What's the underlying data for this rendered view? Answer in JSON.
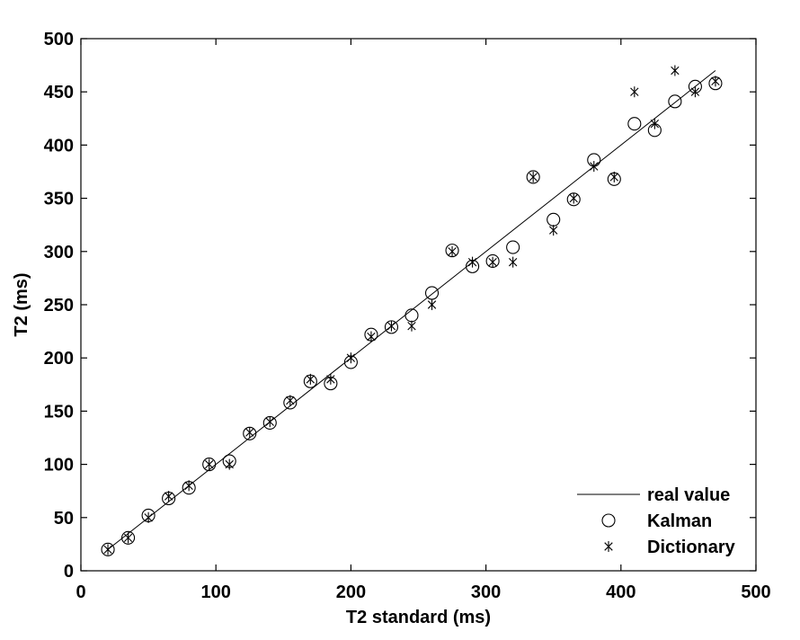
{
  "chart_data": {
    "type": "scatter",
    "title": "",
    "xlabel": "T2 standard (ms)",
    "ylabel": "T2 (ms)",
    "xlim": [
      0,
      500
    ],
    "ylim": [
      0,
      500
    ],
    "xticks": [
      "0",
      "100",
      "200",
      "300",
      "400",
      "500"
    ],
    "yticks": [
      "0",
      "50",
      "100",
      "150",
      "200",
      "250",
      "300",
      "350",
      "400",
      "450",
      "500"
    ],
    "grid": false,
    "legend_position": "bottom-right",
    "series": [
      {
        "name": "real value",
        "marker": "line",
        "x": [
          20,
          470
        ],
        "y": [
          20,
          470
        ]
      },
      {
        "name": "Kalman",
        "marker": "circle",
        "x": [
          20,
          35,
          50,
          65,
          80,
          95,
          110,
          125,
          140,
          155,
          170,
          185,
          200,
          215,
          230,
          245,
          260,
          275,
          290,
          305,
          320,
          335,
          350,
          365,
          380,
          395,
          410,
          425,
          440,
          455,
          470
        ],
        "y": [
          20,
          31,
          52,
          68,
          78,
          100,
          103,
          129,
          139,
          158,
          178,
          176,
          196,
          222,
          229,
          240,
          261,
          301,
          286,
          291,
          304,
          370,
          330,
          349,
          386,
          368,
          420,
          414,
          441,
          455,
          458
        ]
      },
      {
        "name": "Dictionary",
        "marker": "star",
        "x": [
          20,
          35,
          50,
          65,
          80,
          95,
          110,
          125,
          140,
          155,
          170,
          185,
          200,
          215,
          230,
          245,
          260,
          275,
          290,
          305,
          320,
          335,
          350,
          365,
          380,
          395,
          410,
          425,
          440,
          455,
          470
        ],
        "y": [
          20,
          31,
          50,
          70,
          80,
          100,
          100,
          130,
          140,
          160,
          180,
          180,
          200,
          220,
          230,
          230,
          250,
          300,
          290,
          290,
          290,
          370,
          320,
          350,
          380,
          370,
          450,
          420,
          470,
          450,
          460
        ]
      }
    ]
  }
}
